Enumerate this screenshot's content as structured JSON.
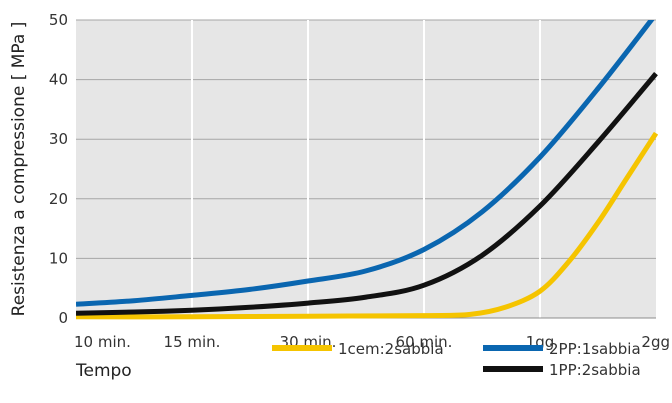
{
  "chart_data": {
    "type": "line",
    "xlabel": "Tempo",
    "ylabel": "Resistenza a compressione [ MPa ]",
    "x_categories": [
      "10 min.",
      "15 min.",
      "30 min.",
      "60 min.",
      "1gg",
      "2gg"
    ],
    "ylim": [
      0,
      50
    ],
    "y_ticks": [
      0,
      10,
      20,
      30,
      40,
      50
    ],
    "grid": {
      "vertical": true,
      "horizontal": true
    },
    "legend_position": "bottom-right",
    "series": [
      {
        "name": "1cem:2sabbia",
        "color": "#f5c400",
        "points": [
          [
            0,
            0.2
          ],
          [
            1,
            0.2
          ],
          [
            2,
            0.3
          ],
          [
            3,
            0.4
          ],
          [
            3.4,
            0.6
          ],
          [
            3.7,
            1.8
          ],
          [
            4,
            4.5
          ],
          [
            4.25,
            9.5
          ],
          [
            4.5,
            16
          ],
          [
            4.75,
            23.5
          ],
          [
            5,
            31
          ]
        ]
      },
      {
        "name": "2PP:1sabbia",
        "color": "#0a66b0",
        "points": [
          [
            0,
            2.3
          ],
          [
            0.5,
            2.9
          ],
          [
            1,
            3.8
          ],
          [
            1.5,
            4.8
          ],
          [
            2,
            6.2
          ],
          [
            2.5,
            7.9
          ],
          [
            3,
            11.5
          ],
          [
            3.5,
            17.8
          ],
          [
            4,
            27
          ],
          [
            4.5,
            38.5
          ],
          [
            5,
            51
          ]
        ]
      },
      {
        "name": "1PP:2sabbia",
        "color": "#111111",
        "points": [
          [
            0,
            0.8
          ],
          [
            0.5,
            1.0
          ],
          [
            1,
            1.3
          ],
          [
            1.5,
            1.8
          ],
          [
            2,
            2.5
          ],
          [
            2.5,
            3.5
          ],
          [
            3,
            5.5
          ],
          [
            3.5,
            10.5
          ],
          [
            4,
            18.8
          ],
          [
            4.5,
            29.5
          ],
          [
            5,
            41
          ]
        ]
      }
    ]
  }
}
